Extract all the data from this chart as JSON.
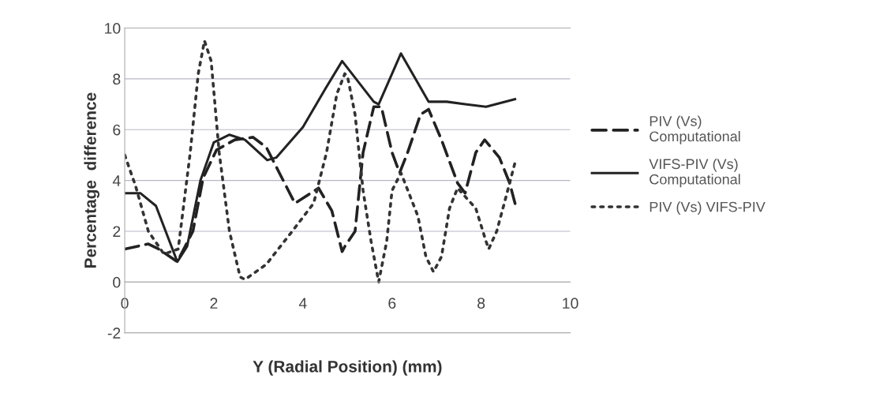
{
  "chart_data": {
    "type": "line",
    "xlabel": "Y (Radial Position) (mm)",
    "ylabel": "Percentage  difference",
    "xlim": [
      0,
      10
    ],
    "xticks": [
      0,
      2,
      4,
      6,
      8,
      10
    ],
    "ylim": [
      -2,
      10
    ],
    "yticks": [
      -2,
      0,
      2,
      4,
      6,
      8,
      10
    ],
    "grid": "y",
    "legend": "right",
    "series": [
      {
        "name": "PIV (Vs)\nComputational",
        "color": "#222222",
        "line_style": "dashed",
        "x": [
          0,
          0.53,
          0.76,
          1.18,
          1.53,
          1.76,
          2.06,
          2.47,
          2.88,
          3.18,
          3.47,
          3.82,
          4.35,
          4.65,
          4.88,
          4.94,
          5.17,
          5.35,
          5.59,
          5.76,
          6.0,
          6.17,
          6.35,
          6.64,
          6.82,
          7.11,
          7.47,
          7.64,
          7.88,
          8.08,
          8.41,
          8.64,
          8.79
        ],
        "values": [
          1.3,
          1.5,
          1.3,
          0.8,
          2.0,
          4.1,
          5.2,
          5.6,
          5.7,
          5.3,
          4.3,
          3.1,
          3.7,
          2.8,
          1.2,
          1.4,
          2.0,
          5.1,
          6.9,
          6.9,
          5.1,
          4.3,
          5.1,
          6.6,
          6.8,
          5.6,
          3.9,
          3.5,
          5.1,
          5.6,
          4.9,
          3.9,
          2.9
        ]
      },
      {
        "name": "VIFS-PIV (Vs)\nComputational",
        "color": "#222222",
        "line_style": "solid",
        "x": [
          0,
          0.35,
          0.7,
          1.18,
          1.4,
          1.7,
          2.0,
          2.35,
          2.7,
          3.2,
          3.4,
          4.0,
          4.5,
          4.88,
          5.59,
          5.7,
          6.2,
          6.82,
          7.23,
          7.64,
          8.11,
          8.76
        ],
        "values": [
          3.5,
          3.5,
          3.0,
          0.8,
          1.4,
          4.0,
          5.5,
          5.8,
          5.6,
          4.8,
          4.9,
          6.1,
          7.6,
          8.7,
          7.1,
          7.0,
          9.0,
          7.1,
          7.1,
          7.0,
          6.9,
          7.2
        ]
      },
      {
        "name": "PIV (Vs) VIFS-PIV",
        "color": "#333333",
        "line_style": "dotted",
        "x": [
          0,
          0.24,
          0.53,
          0.88,
          1.2,
          1.47,
          1.65,
          1.79,
          1.94,
          2.12,
          2.35,
          2.59,
          2.7,
          3.18,
          3.76,
          4.24,
          4.53,
          4.76,
          4.94,
          5.0,
          5.17,
          5.35,
          5.53,
          5.7,
          5.88,
          6.0,
          6.2,
          6.58,
          6.76,
          6.93,
          7.11,
          7.29,
          7.47,
          7.88,
          8.11,
          8.17,
          8.35,
          8.58,
          8.76
        ],
        "values": [
          5.0,
          3.8,
          2.0,
          1.1,
          1.3,
          5.1,
          8.2,
          9.5,
          8.7,
          5.1,
          2.0,
          0.2,
          0.1,
          0.7,
          2.0,
          3.1,
          5.1,
          7.4,
          8.2,
          8.1,
          6.6,
          3.6,
          1.6,
          0.0,
          1.6,
          3.6,
          4.3,
          2.6,
          1.0,
          0.4,
          1.0,
          2.9,
          3.7,
          2.9,
          1.6,
          1.3,
          2.0,
          3.5,
          4.7
        ]
      }
    ]
  }
}
